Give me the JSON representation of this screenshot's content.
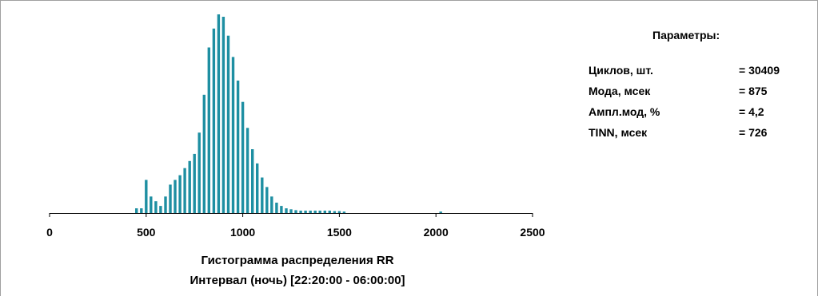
{
  "chart_data": {
    "type": "bar",
    "title": "Гистограмма распределения RR",
    "subtitle": "Интервал (ночь) [22:20:00 - 06:00:00]",
    "xlim": [
      0,
      2500
    ],
    "x_ticks": [
      "0",
      "500",
      "1000",
      "1500",
      "2000",
      "2500"
    ],
    "bar_color": "#1e8fa2",
    "x": [
      450,
      475,
      500,
      525,
      550,
      575,
      600,
      625,
      650,
      675,
      700,
      725,
      750,
      775,
      800,
      825,
      850,
      875,
      900,
      925,
      950,
      975,
      1000,
      1025,
      1050,
      1075,
      1100,
      1125,
      1150,
      1175,
      1200,
      1225,
      1250,
      1275,
      1300,
      1325,
      1350,
      1375,
      1400,
      1425,
      1450,
      1475,
      1500,
      1525,
      2025
    ],
    "values": [
      0.1,
      0.1,
      0.7,
      0.35,
      0.25,
      0.15,
      0.35,
      0.6,
      0.7,
      0.8,
      0.95,
      1.1,
      1.25,
      1.7,
      2.5,
      3.5,
      3.9,
      4.2,
      4.15,
      3.75,
      3.3,
      2.8,
      2.35,
      1.8,
      1.35,
      1.05,
      0.75,
      0.55,
      0.35,
      0.22,
      0.15,
      0.1,
      0.08,
      0.06,
      0.05,
      0.05,
      0.05,
      0.05,
      0.05,
      0.05,
      0.05,
      0.04,
      0.04,
      0.03,
      0.03
    ]
  },
  "parameters": {
    "title": "Параметры:",
    "rows": [
      {
        "label": "Циклов, шт.",
        "value": "= 30409"
      },
      {
        "label": "Мода, мсек",
        "value": "= 875"
      },
      {
        "label": "Ампл.мод, %",
        "value": "= 4,2"
      },
      {
        "label": "TINN, мсек",
        "value": "= 726"
      }
    ]
  }
}
